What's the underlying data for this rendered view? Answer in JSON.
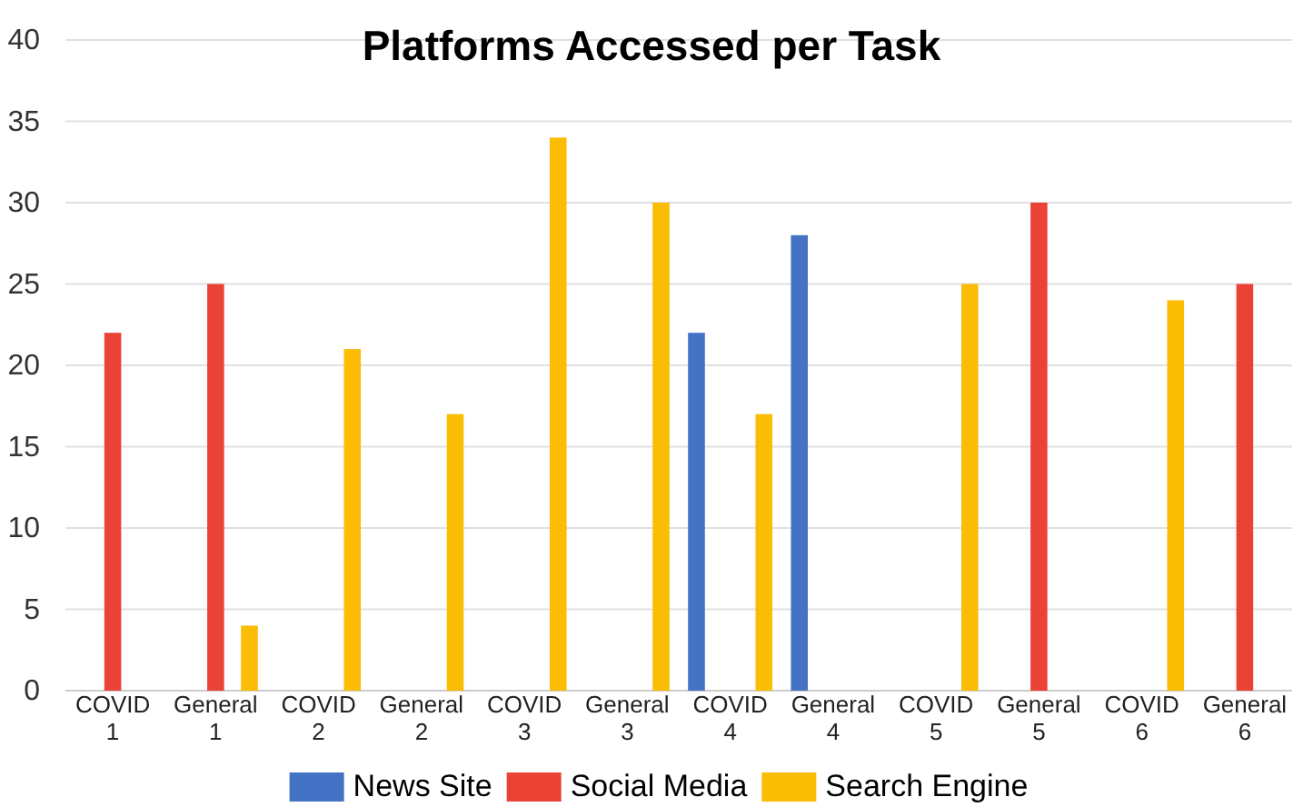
{
  "chart_data": {
    "type": "bar",
    "title": "Platforms Accessed per Task",
    "categories": [
      "COVID 1",
      "General 1",
      "COVID 2",
      "General 2",
      "COVID 3",
      "General 3",
      "COVID 4",
      "General 4",
      "COVID 5",
      "General 5",
      "COVID 6",
      "General 6"
    ],
    "series": [
      {
        "name": "News Site",
        "color": "#4472c4",
        "values": [
          null,
          null,
          null,
          null,
          null,
          null,
          22,
          28,
          null,
          null,
          null,
          null
        ]
      },
      {
        "name": "Social Media",
        "color": "#ea4335",
        "values": [
          22,
          25,
          null,
          null,
          null,
          null,
          null,
          null,
          null,
          30,
          null,
          25
        ]
      },
      {
        "name": "Search Engine",
        "color": "#fbbc04",
        "values": [
          null,
          4,
          21,
          17,
          34,
          30,
          17,
          null,
          25,
          null,
          24,
          null
        ]
      }
    ],
    "ylim": [
      0,
      40
    ],
    "yticks": [
      0,
      5,
      10,
      15,
      20,
      25,
      30,
      35,
      40
    ],
    "grid": "y",
    "legend": "bottom"
  }
}
